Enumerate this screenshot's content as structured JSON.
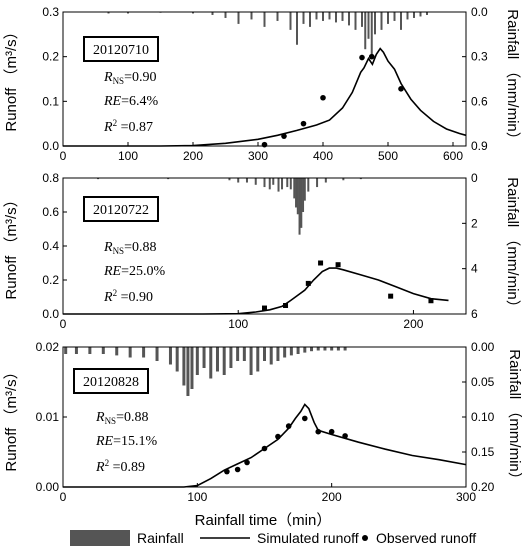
{
  "chart_data": [
    {
      "type": "bar+line+scatter",
      "event_id": "20120710",
      "stats": {
        "nse": "0.90",
        "re": "6.4%",
        "r2": "0.87"
      },
      "xlabel": "",
      "ylabel_left": "Runoff （m³/s）",
      "ylabel_right": "Rainfall （mm/min）",
      "xlim": [
        0,
        620
      ],
      "ylim_left": [
        0,
        0.3
      ],
      "ylim_right": [
        0.9,
        0.0
      ],
      "xticks": [
        0,
        100,
        200,
        300,
        400,
        500,
        600
      ],
      "yticks_left": [
        0.0,
        0.1,
        0.2,
        0.3
      ],
      "yticks_right": [
        0.0,
        0.3,
        0.6,
        0.9
      ],
      "ytick_labels_left": [
        "0.0",
        "0.1",
        "0.2",
        "0.3"
      ],
      "ytick_labels_right": [
        "0.0",
        "0.3",
        "0.6",
        "0.9"
      ],
      "rainfall": {
        "x": [
          70,
          100,
          150,
          200,
          230,
          250,
          270,
          290,
          310,
          330,
          350,
          360,
          370,
          380,
          390,
          400,
          410,
          420,
          430,
          440,
          450,
          460,
          465,
          470,
          475,
          480,
          490,
          500,
          510,
          520,
          530,
          540,
          550,
          560
        ],
        "y": [
          0.01,
          0.01,
          0.005,
          0.01,
          0.02,
          0.04,
          0.08,
          0.05,
          0.1,
          0.06,
          0.12,
          0.22,
          0.08,
          0.1,
          0.05,
          0.06,
          0.05,
          0.07,
          0.06,
          0.09,
          0.12,
          0.1,
          0.25,
          0.18,
          0.3,
          0.15,
          0.12,
          0.08,
          0.06,
          0.12,
          0.05,
          0.04,
          0.03,
          0.02
        ]
      },
      "simulated": {
        "x": [
          0,
          150,
          200,
          250,
          300,
          330,
          360,
          390,
          410,
          430,
          445,
          458,
          463,
          470,
          476,
          482,
          488,
          493,
          500,
          510,
          520,
          535,
          550,
          570,
          590,
          610,
          620
        ],
        "y": [
          0,
          0,
          0.001,
          0.006,
          0.015,
          0.024,
          0.035,
          0.047,
          0.058,
          0.085,
          0.12,
          0.165,
          0.175,
          0.196,
          0.183,
          0.205,
          0.218,
          0.21,
          0.19,
          0.172,
          0.14,
          0.105,
          0.08,
          0.055,
          0.038,
          0.028,
          0.024
        ]
      },
      "observed": {
        "x": [
          310,
          340,
          370,
          400,
          460,
          475,
          520
        ],
        "y": [
          0.003,
          0.022,
          0.05,
          0.108,
          0.198,
          0.2,
          0.128
        ]
      }
    },
    {
      "type": "bar+line+scatter",
      "event_id": "20120722",
      "stats": {
        "nse": "0.88",
        "re": "25.0%",
        "r2": "0.90"
      },
      "xlabel": "",
      "ylabel_left": "Runoff （m³/s）",
      "ylabel_right": "Rainfall （mm/min）",
      "xlim": [
        0,
        230
      ],
      "ylim_left": [
        0,
        0.8
      ],
      "ylim_right": [
        6,
        0
      ],
      "xticks": [
        0,
        100,
        200
      ],
      "yticks_left": [
        0.0,
        0.2,
        0.4,
        0.6,
        0.8
      ],
      "yticks_right": [
        0,
        2,
        4,
        6
      ],
      "ytick_labels_left": [
        "0.0",
        "0.2",
        "0.4",
        "0.6",
        "0.8"
      ],
      "ytick_labels_right": [
        "0",
        "2",
        "4",
        "6"
      ],
      "rainfall": {
        "x": [
          20,
          60,
          95,
          100,
          105,
          110,
          115,
          118,
          120,
          123,
          125,
          128,
          130,
          132,
          133,
          134,
          135,
          136,
          137,
          138,
          140,
          145,
          150,
          160,
          170
        ],
        "y": [
          0.05,
          0.05,
          0.1,
          0.2,
          0.2,
          0.3,
          0.4,
          0.5,
          0.3,
          0.6,
          0.5,
          0.4,
          0.5,
          0.9,
          1.3,
          1.6,
          2.5,
          2.2,
          1.5,
          1.0,
          0.6,
          0.4,
          0.2,
          0.1,
          0.05
        ]
      },
      "simulated": {
        "x": [
          0,
          80,
          100,
          110,
          118,
          125,
          130,
          138,
          143,
          148,
          152,
          156,
          160,
          170,
          180,
          190,
          200,
          210,
          220
        ],
        "y": [
          0,
          0,
          0.002,
          0.012,
          0.025,
          0.045,
          0.08,
          0.14,
          0.2,
          0.25,
          0.27,
          0.27,
          0.26,
          0.23,
          0.2,
          0.16,
          0.12,
          0.09,
          0.08
        ]
      },
      "observed": {
        "x": [
          115,
          127,
          140,
          147,
          157,
          187,
          210
        ],
        "y": [
          0.035,
          0.05,
          0.18,
          0.3,
          0.29,
          0.105,
          0.078
        ]
      }
    },
    {
      "type": "bar+line+scatter",
      "event_id": "20120828",
      "stats": {
        "nse": "0.88",
        "re": "15.1%",
        "r2": "0.89"
      },
      "xlabel": "Rainfall time（min）",
      "ylabel_left": "Runoff （m³/s）",
      "ylabel_right": "Rainfall （mm/min）",
      "xlim": [
        0,
        300
      ],
      "ylim_left": [
        0,
        0.02
      ],
      "ylim_right": [
        0.2,
        0.0
      ],
      "xticks": [
        0,
        100,
        200,
        300
      ],
      "yticks_left": [
        0.0,
        0.01,
        0.02
      ],
      "yticks_right": [
        0.0,
        0.05,
        0.1,
        0.15,
        0.2
      ],
      "ytick_labels_left": [
        "0.00",
        "0.01",
        "0.02"
      ],
      "ytick_labels_right": [
        "0.00",
        "0.05",
        "0.10",
        "0.15",
        "0.20"
      ],
      "rainfall": {
        "x": [
          2,
          10,
          20,
          30,
          40,
          50,
          60,
          70,
          80,
          85,
          90,
          93,
          96,
          100,
          105,
          110,
          115,
          120,
          125,
          130,
          135,
          140,
          145,
          150,
          155,
          160,
          165,
          170,
          175,
          180,
          185,
          190,
          195,
          200,
          205,
          210
        ],
        "y": [
          0.01,
          0.01,
          0.01,
          0.01,
          0.012,
          0.015,
          0.015,
          0.02,
          0.025,
          0.035,
          0.055,
          0.07,
          0.06,
          0.04,
          0.03,
          0.045,
          0.035,
          0.04,
          0.03,
          0.02,
          0.02,
          0.04,
          0.035,
          0.02,
          0.025,
          0.02,
          0.015,
          0.012,
          0.01,
          0.008,
          0.006,
          0.005,
          0.005,
          0.005,
          0.005,
          0.005
        ]
      },
      "simulated": {
        "x": [
          0,
          90,
          100,
          110,
          120,
          130,
          140,
          150,
          160,
          168,
          173,
          177,
          180,
          183,
          187,
          190,
          200,
          220,
          240,
          260,
          280,
          300
        ],
        "y": [
          0,
          0,
          0.0002,
          0.0012,
          0.0024,
          0.0033,
          0.0042,
          0.0055,
          0.0068,
          0.0084,
          0.0098,
          0.0108,
          0.0118,
          0.0112,
          0.0092,
          0.0081,
          0.0075,
          0.0064,
          0.0054,
          0.0045,
          0.0039,
          0.0032
        ]
      },
      "observed": {
        "x": [
          122,
          130,
          137,
          150,
          160,
          168,
          180,
          190,
          200,
          210
        ],
        "y": [
          0.0022,
          0.0025,
          0.0035,
          0.0055,
          0.0072,
          0.0087,
          0.0098,
          0.0079,
          0.0079,
          0.0073
        ]
      }
    }
  ],
  "legend": {
    "rainfall_label": "Rainfall",
    "simulated_label": "Simulated runoff",
    "observed_label": "Observed runoff"
  },
  "colors": {
    "bar": "#555555",
    "line": "#000000",
    "marker": "#000000"
  }
}
